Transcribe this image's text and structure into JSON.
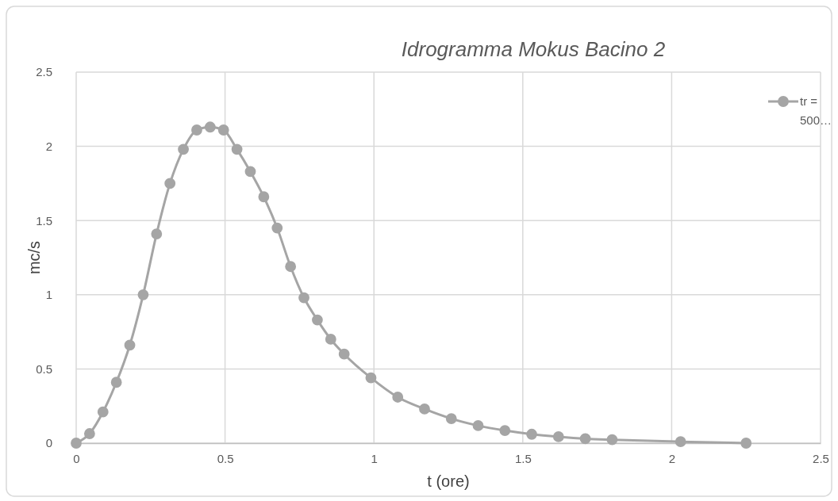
{
  "chart_data": {
    "type": "line",
    "title": "Idrogramma Mokus Bacino 2",
    "xlabel": "t (ore)",
    "ylabel": "mc/s",
    "x": [
      0,
      0.045,
      0.09,
      0.135,
      0.18,
      0.225,
      0.27,
      0.315,
      0.36,
      0.405,
      0.45,
      0.495,
      0.54,
      0.585,
      0.63,
      0.675,
      0.72,
      0.765,
      0.81,
      0.855,
      0.9,
      0.99,
      1.08,
      1.17,
      1.26,
      1.35,
      1.44,
      1.53,
      1.62,
      1.71,
      1.8,
      2.03,
      2.25
    ],
    "series": [
      {
        "name": "tr = 500…",
        "color": "#a5a5a5",
        "values": [
          0,
          0.064,
          0.21,
          0.41,
          0.66,
          1.0,
          1.41,
          1.75,
          1.98,
          2.11,
          2.13,
          2.11,
          1.98,
          1.83,
          1.66,
          1.45,
          1.19,
          0.98,
          0.83,
          0.7,
          0.6,
          0.44,
          0.31,
          0.23,
          0.165,
          0.118,
          0.085,
          0.06,
          0.043,
          0.03,
          0.023,
          0.01,
          0
        ]
      }
    ],
    "xlim": [
      0,
      2.5
    ],
    "xticks": [
      0,
      0.5,
      1,
      1.5,
      2,
      2.5
    ],
    "ylim": [
      0,
      2.5
    ],
    "yticks": [
      0,
      0.5,
      1,
      1.5,
      2,
      2.5
    ],
    "grid": true,
    "legend": "top right",
    "marker": "circle",
    "line_style": "solid"
  }
}
